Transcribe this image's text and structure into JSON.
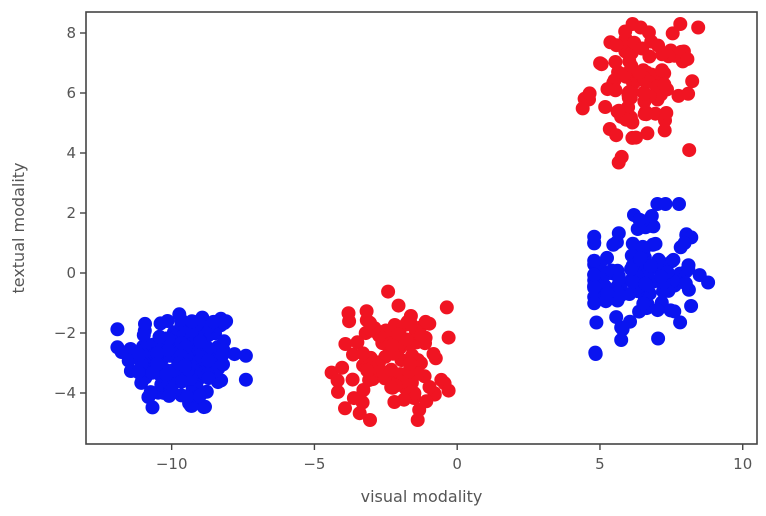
{
  "chart_data": {
    "type": "scatter",
    "title": "",
    "xlabel": "visual modality",
    "ylabel": "textual modality",
    "xlim": [
      -13,
      10.5
    ],
    "ylim": [
      -5.7,
      8.7
    ],
    "xticks": [
      -10,
      -5,
      0,
      5,
      10
    ],
    "yticks": [
      -4,
      -2,
      0,
      2,
      4,
      6,
      8
    ],
    "xtick_labels": [
      "−10",
      "−5",
      "0",
      "5",
      "10"
    ],
    "ytick_labels": [
      "−4",
      "−2",
      "0",
      "2",
      "4",
      "6",
      "8"
    ],
    "grid": false,
    "legend": false,
    "series": [
      {
        "color": "#0a14f0",
        "clusters": [
          {
            "n": 170,
            "cx": -9.6,
            "cy": -2.9,
            "sx": 1.0,
            "sy": 0.9,
            "xmin": -11.9,
            "xmax": -7.4,
            "ymin": -5.0,
            "ymax": -0.8
          },
          {
            "n": 130,
            "cx": 6.4,
            "cy": -0.1,
            "sx": 1.0,
            "sy": 1.1,
            "xmin": 4.8,
            "xmax": 9.1,
            "ymin": -2.7,
            "ymax": 2.3
          }
        ]
      },
      {
        "color": "#f01422",
        "clusters": [
          {
            "n": 110,
            "cx": -2.3,
            "cy": -2.9,
            "sx": 1.0,
            "sy": 0.9,
            "xmin": -4.4,
            "xmax": -0.3,
            "ymin": -4.9,
            "ymax": -0.3
          },
          {
            "n": 100,
            "cx": 6.5,
            "cy": 6.2,
            "sx": 0.9,
            "sy": 1.0,
            "xmin": 3.8,
            "xmax": 8.8,
            "ymin": 3.2,
            "ymax": 8.3
          }
        ]
      }
    ]
  }
}
